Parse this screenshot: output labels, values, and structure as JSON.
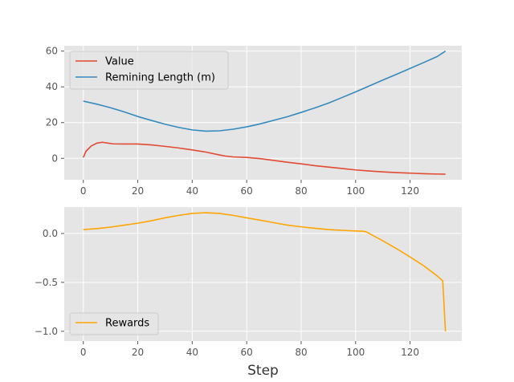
{
  "chart_data": [
    {
      "type": "line",
      "title": "",
      "xlabel": "",
      "ylabel": "",
      "xlim": [
        -7,
        139
      ],
      "ylim": [
        -12,
        63
      ],
      "xticks": [
        0,
        20,
        40,
        60,
        80,
        100,
        120
      ],
      "yticks": [
        0,
        20,
        40,
        60
      ],
      "grid": true,
      "legend_position": "upper left",
      "series": [
        {
          "name": "Value",
          "color": "#E24A33",
          "points": [
            [
              0,
              0.5
            ],
            [
              1,
              4
            ],
            [
              3,
              7
            ],
            [
              5,
              8.5
            ],
            [
              7,
              9
            ],
            [
              9,
              8.5
            ],
            [
              11,
              8.1
            ],
            [
              15,
              8
            ],
            [
              20,
              8
            ],
            [
              25,
              7.5
            ],
            [
              30,
              6.7
            ],
            [
              35,
              5.8
            ],
            [
              40,
              4.7
            ],
            [
              45,
              3.5
            ],
            [
              50,
              1.9
            ],
            [
              52,
              1.3
            ],
            [
              55,
              0.8
            ],
            [
              60,
              0.5
            ],
            [
              65,
              -0.2
            ],
            [
              70,
              -1.2
            ],
            [
              75,
              -2.2
            ],
            [
              80,
              -3.1
            ],
            [
              85,
              -4.1
            ],
            [
              90,
              -4.9
            ],
            [
              95,
              -5.7
            ],
            [
              100,
              -6.5
            ],
            [
              105,
              -7.1
            ],
            [
              110,
              -7.6
            ],
            [
              115,
              -8
            ],
            [
              120,
              -8.3
            ],
            [
              125,
              -8.6
            ],
            [
              130,
              -8.8
            ],
            [
              133,
              -8.9
            ]
          ]
        },
        {
          "name": "Remining Length (m)",
          "color": "#348ABD",
          "points": [
            [
              0,
              32
            ],
            [
              5,
              30.3
            ],
            [
              10,
              28.3
            ],
            [
              15,
              26
            ],
            [
              20,
              23.4
            ],
            [
              25,
              21.2
            ],
            [
              30,
              19.1
            ],
            [
              35,
              17.3
            ],
            [
              40,
              15.9
            ],
            [
              45,
              15.2
            ],
            [
              50,
              15.4
            ],
            [
              55,
              16.3
            ],
            [
              60,
              17.6
            ],
            [
              65,
              19.3
            ],
            [
              70,
              21.3
            ],
            [
              75,
              23.3
            ],
            [
              80,
              25.7
            ],
            [
              85,
              28.2
            ],
            [
              90,
              30.9
            ],
            [
              95,
              34
            ],
            [
              100,
              37.2
            ],
            [
              105,
              40.5
            ],
            [
              110,
              43.8
            ],
            [
              115,
              47
            ],
            [
              120,
              50.3
            ],
            [
              125,
              53.6
            ],
            [
              130,
              57
            ],
            [
              133,
              60
            ]
          ]
        }
      ]
    },
    {
      "type": "line",
      "title": "",
      "xlabel": "Step",
      "ylabel": "",
      "xlim": [
        -7,
        139
      ],
      "ylim": [
        -1.1,
        0.27
      ],
      "xticks": [
        0,
        20,
        40,
        60,
        80,
        100,
        120
      ],
      "yticks": [
        -1.0,
        -0.5,
        0.0
      ],
      "ytick_labels": [
        "−1.0",
        "−0.5",
        "0.0"
      ],
      "grid": true,
      "legend_position": "lower left",
      "series": [
        {
          "name": "Rewards",
          "color": "#FFA500",
          "points": [
            [
              0,
              0.04
            ],
            [
              5,
              0.05
            ],
            [
              10,
              0.065
            ],
            [
              15,
              0.085
            ],
            [
              20,
              0.105
            ],
            [
              25,
              0.13
            ],
            [
              30,
              0.16
            ],
            [
              35,
              0.185
            ],
            [
              40,
              0.205
            ],
            [
              45,
              0.212
            ],
            [
              50,
              0.205
            ],
            [
              55,
              0.185
            ],
            [
              60,
              0.16
            ],
            [
              65,
              0.135
            ],
            [
              70,
              0.11
            ],
            [
              75,
              0.085
            ],
            [
              80,
              0.068
            ],
            [
              85,
              0.053
            ],
            [
              90,
              0.04
            ],
            [
              95,
              0.032
            ],
            [
              100,
              0.025
            ],
            [
              103,
              0.022
            ],
            [
              104,
              0.015
            ],
            [
              110,
              -0.075
            ],
            [
              115,
              -0.155
            ],
            [
              120,
              -0.24
            ],
            [
              125,
              -0.33
            ],
            [
              130,
              -0.435
            ],
            [
              132,
              -0.485
            ],
            [
              133,
              -1.0
            ]
          ]
        }
      ]
    }
  ]
}
